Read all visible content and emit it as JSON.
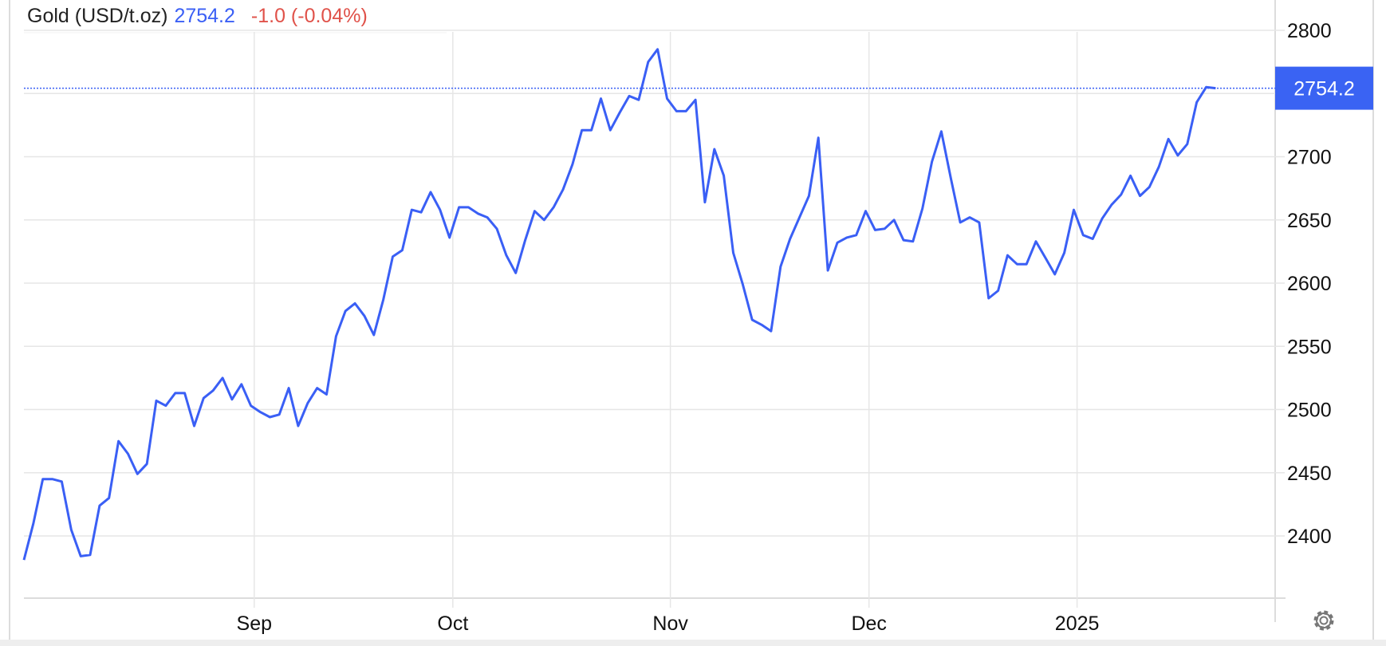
{
  "header": {
    "instrument": "Gold (USD/t.oz)",
    "price": "2754.2",
    "change": "-1.0 (-0.04%)"
  },
  "price_label": "2754.2",
  "settings_icon": "gear-icon",
  "colors": {
    "line": "#3a5ff5",
    "negative": "#e0524a",
    "price_tag": "#3a63f3",
    "grid": "#e6e6e6"
  },
  "chart_data": {
    "type": "line",
    "title": "Gold (USD/t.oz)",
    "xlabel": "",
    "ylabel": "",
    "ylim": [
      2351,
      2800
    ],
    "yticks": [
      2400,
      2450,
      2500,
      2550,
      2600,
      2650,
      2700,
      2750,
      2800
    ],
    "ytick_labels": [
      "2400",
      "2450",
      "2500",
      "2550",
      "2600",
      "2650",
      "2700",
      "",
      "2800"
    ],
    "xtick_labels": [
      {
        "label": "Sep",
        "date": "2024-09-01"
      },
      {
        "label": "Oct",
        "date": "2024-10-01"
      },
      {
        "label": "Nov",
        "date": "2024-11-01"
      },
      {
        "label": "Dec",
        "date": "2024-12-01"
      },
      {
        "label": "2025",
        "date": "2025-01-01"
      }
    ],
    "grid": true,
    "last_value": 2754.2,
    "x": [
      "2024-07-29",
      "2024-07-30",
      "2024-07-31",
      "2024-08-01",
      "2024-08-02",
      "2024-08-05",
      "2024-08-06",
      "2024-08-07",
      "2024-08-08",
      "2024-08-09",
      "2024-08-12",
      "2024-08-13",
      "2024-08-14",
      "2024-08-15",
      "2024-08-16",
      "2024-08-19",
      "2024-08-20",
      "2024-08-21",
      "2024-08-22",
      "2024-08-23",
      "2024-08-26",
      "2024-08-27",
      "2024-08-28",
      "2024-08-29",
      "2024-08-30",
      "2024-09-02",
      "2024-09-03",
      "2024-09-04",
      "2024-09-05",
      "2024-09-06",
      "2024-09-09",
      "2024-09-10",
      "2024-09-11",
      "2024-09-12",
      "2024-09-13",
      "2024-09-16",
      "2024-09-17",
      "2024-09-18",
      "2024-09-19",
      "2024-09-20",
      "2024-09-23",
      "2024-09-24",
      "2024-09-25",
      "2024-09-26",
      "2024-09-27",
      "2024-09-30",
      "2024-10-01",
      "2024-10-02",
      "2024-10-03",
      "2024-10-04",
      "2024-10-07",
      "2024-10-08",
      "2024-10-09",
      "2024-10-10",
      "2024-10-11",
      "2024-10-14",
      "2024-10-15",
      "2024-10-16",
      "2024-10-17",
      "2024-10-18",
      "2024-10-21",
      "2024-10-22",
      "2024-10-23",
      "2024-10-24",
      "2024-10-25",
      "2024-10-28",
      "2024-10-29",
      "2024-10-30",
      "2024-10-31",
      "2024-11-01",
      "2024-11-04",
      "2024-11-05",
      "2024-11-06",
      "2024-11-07",
      "2024-11-08",
      "2024-11-11",
      "2024-11-12",
      "2024-11-13",
      "2024-11-14",
      "2024-11-15",
      "2024-11-18",
      "2024-11-19",
      "2024-11-20",
      "2024-11-21",
      "2024-11-22",
      "2024-11-25",
      "2024-11-26",
      "2024-11-27",
      "2024-11-28",
      "2024-11-29",
      "2024-12-02",
      "2024-12-03",
      "2024-12-04",
      "2024-12-05",
      "2024-12-06",
      "2024-12-09",
      "2024-12-10",
      "2024-12-11",
      "2024-12-12",
      "2024-12-13",
      "2024-12-16",
      "2024-12-17",
      "2024-12-18",
      "2024-12-19",
      "2024-12-20",
      "2024-12-23",
      "2024-12-24",
      "2024-12-25",
      "2024-12-26",
      "2024-12-27",
      "2024-12-30",
      "2024-12-31",
      "2025-01-01",
      "2025-01-02",
      "2025-01-03",
      "2025-01-06",
      "2025-01-07",
      "2025-01-08",
      "2025-01-09",
      "2025-01-10",
      "2025-01-13",
      "2025-01-14",
      "2025-01-15",
      "2025-01-16",
      "2025-01-17",
      "2025-01-20",
      "2025-01-21"
    ],
    "series": [
      {
        "values": [
          2381,
          2410,
          2445,
          2445,
          2443,
          2405,
          2384,
          2385,
          2424,
          2430,
          2475,
          2465,
          2449,
          2457,
          2507,
          2503,
          2513,
          2513,
          2487,
          2509,
          2515,
          2525,
          2508,
          2520,
          2503,
          2498,
          2494,
          2496,
          2517,
          2487,
          2505,
          2517,
          2512,
          2558,
          2578,
          2584,
          2574,
          2559,
          2587,
          2621,
          2626,
          2658,
          2656,
          2672,
          2658,
          2636,
          2660,
          2660,
          2655,
          2652,
          2643,
          2622,
          2608,
          2634,
          2657,
          2650,
          2660,
          2674,
          2694,
          2721,
          2721,
          2746,
          2721,
          2735,
          2748,
          2745,
          2775,
          2785,
          2746,
          2736,
          2736,
          2745,
          2664,
          2706,
          2685,
          2624,
          2599,
          2571,
          2567,
          2562,
          2613,
          2635,
          2652,
          2669,
          2715,
          2610,
          2632,
          2636,
          2638,
          2657,
          2642,
          2643,
          2650,
          2634,
          2633,
          2659,
          2696,
          2720,
          2683,
          2648,
          2652,
          2648,
          2588,
          2594,
          2622,
          2615,
          2615,
          2633,
          2620,
          2607,
          2624,
          2658,
          2638,
          2635,
          2651,
          2662,
          2670,
          2685,
          2669,
          2676,
          2692,
          2714,
          2701,
          2710,
          2743,
          2755,
          2754.2
        ]
      }
    ]
  }
}
